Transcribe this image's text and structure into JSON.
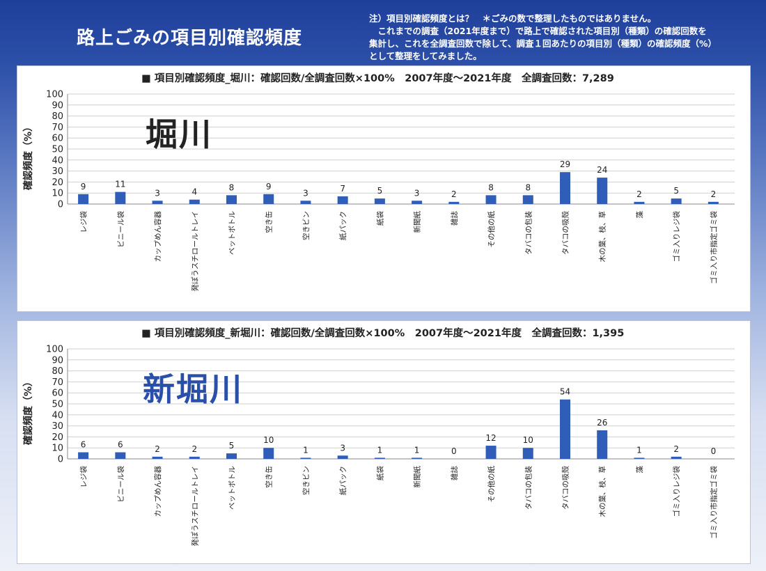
{
  "header": {
    "title": "路上ごみの項目別確認頻度",
    "note_lines": [
      "注）項目別確認頻度とは？　＊ごみの数で整理したものではありません。",
      "　これまでの調査（2021年度まで）で路上で確認された項目別（種類）の確認回数を",
      "集計し、これを全調査回数で除して、調査１回あたりの項目別（種類）の確認頻度（%）",
      "として整理をしてみました。"
    ]
  },
  "panels": [
    {
      "river": "堀川",
      "title": "■ 項目別確認頻度_堀川：確認回数/全調査回数×100%　2007年度～2021年度　全調査回数：7,289"
    },
    {
      "river": "新堀川",
      "title": "■ 項目別確認頻度_新堀川：確認回数/全調査回数×100%　2007年度～2021年度　全調査回数：1,395"
    }
  ],
  "chart_data": [
    {
      "type": "bar",
      "title": "■ 項目別確認頻度_堀川：確認回数/全調査回数×100%　2007年度～2021年度　全調査回数：7,289",
      "ylabel": "確認頻度（%）",
      "ylim": [
        0,
        100
      ],
      "yticks": [
        0,
        10,
        20,
        30,
        40,
        50,
        60,
        70,
        80,
        90,
        100
      ],
      "grid": true,
      "bar_color": "#2f5db8",
      "categories": [
        "レジ袋",
        "ビニール袋",
        "カップめん容器",
        "発ぽうスチロールトレイ",
        "ペットボトル",
        "空き缶",
        "空きビン",
        "紙パック",
        "紙袋",
        "新聞紙",
        "雑誌",
        "その他の紙",
        "タバコの包装",
        "タバコの吸殻",
        "木の葉、枝、草",
        "藻",
        "ゴミ入りレジ袋",
        "ゴミ入り市指定ゴミ袋"
      ],
      "values": [
        9,
        11,
        3,
        4,
        8,
        9,
        3,
        7,
        5,
        3,
        2,
        8,
        8,
        29,
        24,
        2,
        5,
        2
      ]
    },
    {
      "type": "bar",
      "title": "■ 項目別確認頻度_新堀川：確認回数/全調査回数×100%　2007年度～2021年度　全調査回数：1,395",
      "ylabel": "確認頻度（%）",
      "ylim": [
        0,
        100
      ],
      "yticks": [
        0,
        10,
        20,
        30,
        40,
        50,
        60,
        70,
        80,
        90,
        100
      ],
      "grid": true,
      "bar_color": "#2f5db8",
      "categories": [
        "レジ袋",
        "ビニール袋",
        "カップめん容器",
        "発ぽうスチロールトレイ",
        "ペットボトル",
        "空き缶",
        "空きビン",
        "紙パック",
        "紙袋",
        "新聞紙",
        "雑誌",
        "その他の紙",
        "タバコの包装",
        "タバコの吸殻",
        "木の葉、枝、草",
        "藻",
        "ゴミ入りレジ袋",
        "ゴミ入り市指定ゴミ袋"
      ],
      "values": [
        6,
        6,
        2,
        2,
        5,
        10,
        1,
        3,
        1,
        1,
        0,
        12,
        10,
        54,
        26,
        1,
        2,
        0
      ]
    }
  ]
}
